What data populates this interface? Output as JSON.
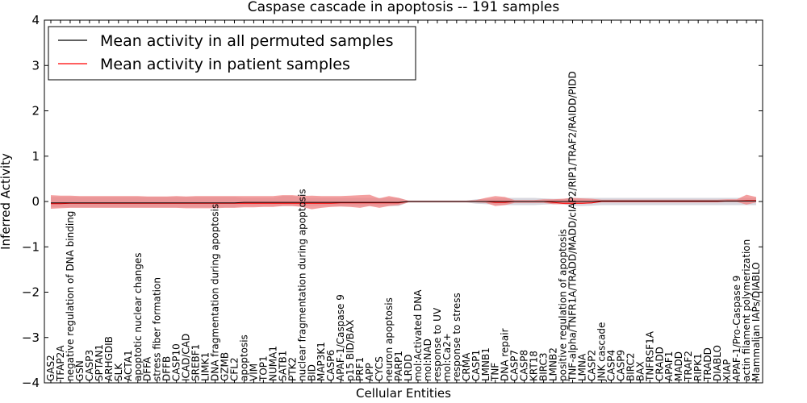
{
  "chart_data": {
    "type": "line",
    "title": "Caspase cascade in apoptosis -- 191 samples",
    "xlabel": "Cellular Entities",
    "ylabel": "Inferred Activity",
    "ylim": [
      -4,
      4
    ],
    "yticks": [
      "4",
      "3",
      "2",
      "1",
      "0",
      "−1",
      "−2",
      "−3",
      "−4"
    ],
    "ytick_values": [
      4,
      3,
      2,
      1,
      0,
      -1,
      -2,
      -3,
      -4
    ],
    "legend_position": "top-left",
    "grid": false,
    "colors": {
      "permuted": "#000000",
      "patient": "#ff0000",
      "patient_band": "#f08080",
      "permuted_band": "#c8c8d2"
    },
    "categories": [
      "GAS2",
      "TFAP2A",
      "negative regulation of DNA binding",
      "GSN",
      "CASP3",
      "SPTAN1",
      "ARHGDIB",
      "SLK",
      "ACTA1",
      "apoptotic nuclear changes",
      "DFFA",
      "stress fiber formation",
      "DFFB",
      "CASP10",
      "ICAD/CAD",
      "SREBF1",
      "LIMK1",
      "DNA fragmentation during apoptosis",
      "GZMB",
      "CFL2",
      "apoptosis",
      "VIM",
      "TOP1",
      "NUMA1",
      "SATB1",
      "PTK2",
      "nuclear fragmentation during apoptosis",
      "BID",
      "MAP3K1",
      "CASP6",
      "APAF-1/Caspase 9",
      "p15 BID/BAX",
      "PRF1",
      "APP",
      "CYCS",
      "neuron apoptosis",
      "PARP1",
      "LRDD",
      "mol:Activated DNA",
      "mol:NAD",
      "response to UV",
      "mol:Ca2+",
      "response to stress",
      "CRMA",
      "CASP1",
      "LMNB1",
      "TNF",
      "DNA repair",
      "CASP7",
      "CASP8",
      "KRT18",
      "BIRC3",
      "LMNB2",
      "positive regulation of apoptosis",
      "TNF-alpha/TNFR1A/TRADD/MADD/cIAP2/RIP1/TRAF2/RAIDD/PIDD",
      "LMNA",
      "CASP2",
      "JNK cascade",
      "CASP4",
      "CASP9",
      "BIRC2",
      "BAX",
      "TNFRSF1A",
      "CRADD",
      "APAF1",
      "MADD",
      "TRAF2",
      "RIPK1",
      "TRADD",
      "DIABLO",
      "XIAP",
      "APAF-1/Pro-Caspase 9",
      "actin filament polymerization",
      "Mammalian IAPs/DIABLO"
    ],
    "series": [
      {
        "name": "Mean activity in all permuted samples",
        "values": [
          -0.03,
          -0.03,
          -0.03,
          -0.03,
          -0.03,
          -0.03,
          -0.03,
          -0.03,
          -0.03,
          -0.03,
          -0.03,
          -0.03,
          -0.03,
          -0.03,
          -0.03,
          -0.03,
          -0.03,
          -0.03,
          -0.03,
          -0.03,
          -0.02,
          -0.02,
          -0.02,
          -0.02,
          -0.02,
          -0.02,
          -0.02,
          -0.02,
          -0.02,
          -0.02,
          -0.02,
          -0.02,
          -0.02,
          -0.02,
          -0.02,
          -0.02,
          -0.02,
          0,
          0,
          0,
          0,
          0,
          0,
          0,
          0,
          0,
          0,
          0,
          0,
          0,
          0,
          0,
          0,
          0,
          0,
          0,
          0,
          0.01,
          0.01,
          0.01,
          0.01,
          0.01,
          0.01,
          0.01,
          0.01,
          0.01,
          0.01,
          0.01,
          0.01,
          0.01,
          0.01,
          0.01,
          0.01,
          0.01
        ],
        "band_lower": [
          -0.13,
          -0.13,
          -0.13,
          -0.13,
          -0.13,
          -0.13,
          -0.13,
          -0.13,
          -0.13,
          -0.13,
          -0.13,
          -0.13,
          -0.13,
          -0.13,
          -0.13,
          -0.13,
          -0.13,
          -0.13,
          -0.13,
          -0.13,
          -0.1,
          -0.1,
          -0.1,
          -0.1,
          -0.1,
          -0.1,
          -0.1,
          -0.1,
          -0.1,
          -0.1,
          -0.1,
          -0.1,
          -0.1,
          -0.1,
          -0.1,
          -0.1,
          -0.1,
          -0.02,
          -0.02,
          -0.02,
          -0.02,
          -0.02,
          -0.02,
          -0.02,
          -0.05,
          -0.06,
          -0.07,
          -0.08,
          -0.08,
          -0.08,
          -0.08,
          -0.07,
          -0.06,
          -0.06,
          -0.1,
          -0.1,
          -0.09,
          -0.08,
          -0.08,
          -0.08,
          -0.08,
          -0.08,
          -0.08,
          -0.08,
          -0.08,
          -0.08,
          -0.08,
          -0.08,
          -0.08,
          -0.08,
          -0.08,
          -0.08,
          -0.08,
          -0.08
        ],
        "band_upper": [
          0.1,
          0.1,
          0.1,
          0.1,
          0.1,
          0.1,
          0.1,
          0.1,
          0.1,
          0.1,
          0.1,
          0.1,
          0.1,
          0.1,
          0.1,
          0.1,
          0.1,
          0.1,
          0.1,
          0.1,
          0.08,
          0.08,
          0.08,
          0.08,
          0.12,
          0.12,
          0.08,
          0.08,
          0.08,
          0.08,
          0.08,
          0.08,
          0.08,
          0.08,
          0.08,
          0.08,
          0.08,
          0.02,
          0.02,
          0.02,
          0.02,
          0.02,
          0.02,
          0.02,
          0.05,
          0.06,
          0.07,
          0.08,
          0.08,
          0.08,
          0.08,
          0.07,
          0.06,
          0.06,
          0.08,
          0.08,
          0.08,
          0.08,
          0.08,
          0.08,
          0.08,
          0.08,
          0.08,
          0.08,
          0.08,
          0.08,
          0.08,
          0.08,
          0.08,
          0.08,
          0.08,
          0.08,
          0.08,
          0.08
        ]
      },
      {
        "name": "Mean activity in patient samples",
        "values": [
          -0.05,
          -0.05,
          -0.04,
          -0.04,
          -0.04,
          -0.04,
          -0.04,
          -0.04,
          -0.04,
          -0.04,
          -0.04,
          -0.04,
          -0.04,
          -0.04,
          -0.04,
          -0.04,
          -0.04,
          -0.04,
          -0.04,
          -0.04,
          -0.04,
          -0.04,
          -0.04,
          -0.04,
          -0.04,
          -0.04,
          -0.04,
          -0.04,
          -0.04,
          -0.04,
          -0.03,
          -0.03,
          -0.03,
          -0.03,
          -0.03,
          -0.03,
          -0.03,
          0,
          0,
          0,
          0,
          0,
          0,
          0,
          0,
          0,
          -0.02,
          -0.02,
          0,
          0,
          0,
          0,
          -0.02,
          -0.04,
          -0.04,
          -0.04,
          -0.03,
          0,
          0,
          0,
          0,
          0,
          0,
          0,
          0,
          0,
          0,
          0,
          0,
          0,
          0.01,
          0.01,
          0.02,
          0.02
        ],
        "band_lower": [
          -0.16,
          -0.15,
          -0.14,
          -0.14,
          -0.14,
          -0.14,
          -0.14,
          -0.14,
          -0.14,
          -0.14,
          -0.14,
          -0.14,
          -0.14,
          -0.14,
          -0.15,
          -0.15,
          -0.15,
          -0.15,
          -0.14,
          -0.14,
          -0.13,
          -0.13,
          -0.12,
          -0.12,
          -0.1,
          -0.1,
          -0.12,
          -0.17,
          -0.14,
          -0.12,
          -0.11,
          -0.12,
          -0.14,
          -0.1,
          -0.14,
          -0.1,
          -0.08,
          -0.02,
          -0.02,
          -0.02,
          -0.02,
          -0.02,
          -0.02,
          -0.02,
          -0.02,
          -0.03,
          -0.1,
          -0.08,
          -0.03,
          -0.03,
          -0.03,
          -0.03,
          -0.06,
          -0.06,
          -0.06,
          -0.05,
          -0.04,
          -0.01,
          -0.01,
          -0.01,
          -0.01,
          -0.01,
          -0.01,
          -0.01,
          -0.01,
          -0.01,
          -0.01,
          -0.01,
          -0.01,
          -0.01,
          -0.01,
          -0.01,
          -0.07,
          -0.02
        ],
        "band_upper": [
          0.14,
          0.13,
          0.13,
          0.12,
          0.12,
          0.12,
          0.12,
          0.12,
          0.12,
          0.12,
          0.11,
          0.11,
          0.11,
          0.12,
          0.11,
          0.12,
          0.12,
          0.12,
          0.12,
          0.12,
          0.12,
          0.12,
          0.12,
          0.12,
          0.14,
          0.14,
          0.12,
          0.13,
          0.12,
          0.12,
          0.12,
          0.13,
          0.14,
          0.15,
          0.07,
          0.12,
          0.08,
          0.02,
          0.02,
          0.02,
          0.02,
          0.02,
          0.02,
          0.02,
          0.03,
          0.08,
          0.12,
          0.1,
          0.03,
          0.03,
          0.03,
          0.05,
          0.05,
          0.06,
          0.08,
          0.07,
          0.06,
          0.04,
          0.04,
          0.04,
          0.04,
          0.04,
          0.04,
          0.04,
          0.04,
          0.04,
          0.04,
          0.04,
          0.04,
          0.04,
          0.05,
          0.05,
          0.15,
          0.1
        ]
      }
    ]
  }
}
